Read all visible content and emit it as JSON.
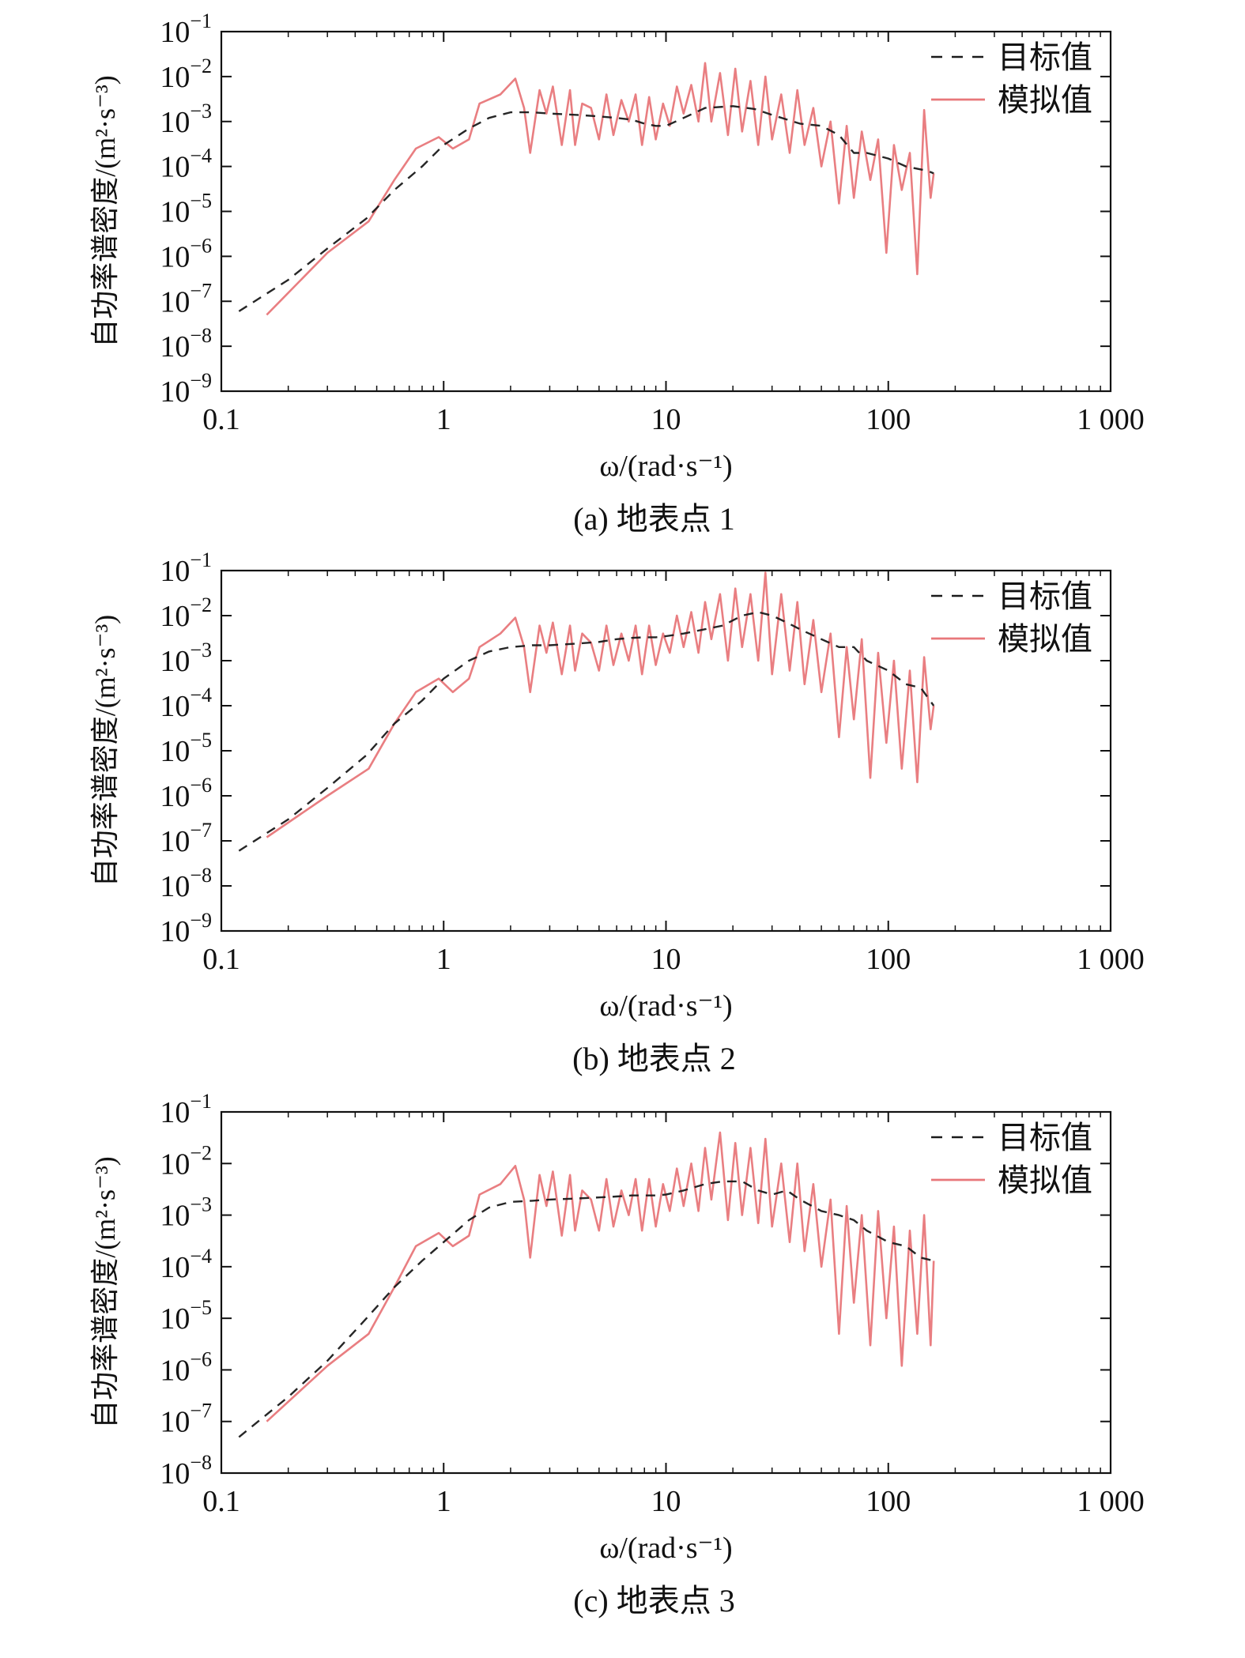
{
  "chart_data": [
    {
      "type": "line",
      "caption": "(a) 地表点 1",
      "xlabel": "ω/(rad·s⁻¹)",
      "ylabel": "自功率谱密度/(m²·s⁻³)",
      "xscale": "log",
      "yscale": "log",
      "xlim": [
        0.1,
        1000
      ],
      "ylim": [
        1e-09,
        0.1
      ],
      "xticks": [
        "0.1",
        "1",
        "10",
        "100",
        "1 000"
      ],
      "yticks": [
        {
          "base": "10",
          "exp": "−1"
        },
        {
          "base": "10",
          "exp": "−2"
        },
        {
          "base": "10",
          "exp": "−3"
        },
        {
          "base": "10",
          "exp": "−4"
        },
        {
          "base": "10",
          "exp": "−5"
        },
        {
          "base": "10",
          "exp": "−6"
        },
        {
          "base": "10",
          "exp": "−7"
        },
        {
          "base": "10",
          "exp": "−8"
        },
        {
          "base": "10",
          "exp": "−9"
        }
      ],
      "legend": {
        "position": "top-right",
        "entries": [
          "目标值",
          "模拟值"
        ]
      },
      "colors": {
        "target": "#1a1a1a",
        "simulated": "#e8777a"
      },
      "series": [
        {
          "name": "目标值",
          "style": "dashed",
          "x": [
            0.12,
            0.2,
            0.3,
            0.45,
            0.6,
            0.8,
            1.0,
            1.3,
            1.6,
            2.0,
            2.5,
            3.0,
            4.0,
            5.0,
            6.0,
            7.0,
            8.0,
            9.0,
            10.0,
            12.0,
            15.0,
            20.0,
            25.0,
            30.0,
            40.0,
            50.0,
            60.0,
            70.0,
            80.0,
            100.0,
            120.0,
            150.0,
            160.0
          ],
          "y": [
            6e-08,
            3e-07,
            1.5e-06,
            7e-06,
            3e-05,
            0.0001,
            0.0003,
            0.0007,
            0.0012,
            0.0016,
            0.0016,
            0.0015,
            0.0014,
            0.0013,
            0.0012,
            0.0011,
            0.0009,
            0.0008,
            0.0008,
            0.0012,
            0.002,
            0.0022,
            0.0019,
            0.0014,
            0.0009,
            0.0008,
            0.0005,
            0.0002,
            0.0002,
            0.00015,
            0.0001,
            8e-05,
            7e-05
          ]
        },
        {
          "name": "模拟值",
          "style": "solid",
          "x": [
            0.16,
            0.3,
            0.46,
            0.6,
            0.75,
            0.95,
            1.1,
            1.3,
            1.45,
            1.8,
            2.1,
            2.3,
            2.45,
            2.7,
            2.9,
            3.1,
            3.4,
            3.7,
            3.9,
            4.2,
            4.6,
            5.0,
            5.4,
            5.8,
            6.3,
            6.8,
            7.3,
            7.8,
            8.4,
            9.0,
            9.7,
            10.4,
            11.2,
            12.0,
            13.0,
            14.0,
            15.0,
            16.0,
            17.5,
            19.0,
            20.5,
            22.0,
            24.0,
            26.0,
            28.0,
            30.0,
            33.0,
            36.0,
            39.0,
            42.0,
            46.0,
            50.0,
            55.0,
            60.0,
            65.0,
            70.0,
            76.0,
            83.0,
            90.0,
            98.0,
            106.0,
            115.0,
            125.0,
            135.0,
            145.0,
            155.0,
            160.0
          ],
          "y": [
            5e-08,
            1.2e-06,
            6e-06,
            5e-05,
            0.00025,
            0.00045,
            0.00025,
            0.0004,
            0.0025,
            0.004,
            0.009,
            0.002,
            0.0002,
            0.005,
            0.0015,
            0.006,
            0.0003,
            0.005,
            0.0003,
            0.0025,
            0.002,
            0.0004,
            0.004,
            0.0005,
            0.003,
            0.001,
            0.004,
            0.0003,
            0.0035,
            0.0004,
            0.0025,
            0.0008,
            0.006,
            0.0015,
            0.0065,
            0.001,
            0.02,
            0.001,
            0.012,
            0.0005,
            0.015,
            0.0006,
            0.008,
            0.0003,
            0.01,
            0.0004,
            0.004,
            0.0002,
            0.005,
            0.0003,
            0.002,
            0.0001,
            0.001,
            1.5e-05,
            0.0008,
            2e-05,
            0.0006,
            5e-05,
            0.0004,
            1.2e-06,
            0.0003,
            3e-05,
            0.0002,
            4e-07,
            0.0018,
            2e-05,
            7e-05
          ]
        }
      ]
    },
    {
      "type": "line",
      "caption": "(b) 地表点 2",
      "xlabel": "ω/(rad·s⁻¹)",
      "ylabel": "自功率谱密度/(m²·s⁻³)",
      "xscale": "log",
      "yscale": "log",
      "xlim": [
        0.1,
        1000
      ],
      "ylim": [
        1e-09,
        0.1
      ],
      "xticks": [
        "0.1",
        "1",
        "10",
        "100",
        "1 000"
      ],
      "yticks": [
        {
          "base": "10",
          "exp": "−1"
        },
        {
          "base": "10",
          "exp": "−2"
        },
        {
          "base": "10",
          "exp": "−3"
        },
        {
          "base": "10",
          "exp": "−4"
        },
        {
          "base": "10",
          "exp": "−5"
        },
        {
          "base": "10",
          "exp": "−6"
        },
        {
          "base": "10",
          "exp": "−7"
        },
        {
          "base": "10",
          "exp": "−8"
        },
        {
          "base": "10",
          "exp": "−9"
        }
      ],
      "legend": {
        "position": "top-right",
        "entries": [
          "目标值",
          "模拟值"
        ]
      },
      "colors": {
        "target": "#1a1a1a",
        "simulated": "#e8777a"
      },
      "series": [
        {
          "name": "目标值",
          "style": "dashed",
          "x": [
            0.12,
            0.2,
            0.3,
            0.45,
            0.6,
            0.8,
            1.0,
            1.3,
            1.6,
            2.0,
            2.5,
            3.0,
            4.0,
            5.0,
            6.0,
            7.0,
            8.0,
            9.0,
            10.0,
            12.0,
            15.0,
            18.0,
            22.0,
            26.0,
            30.0,
            35.0,
            40.0,
            50.0,
            60.0,
            70.0,
            80.0,
            100.0,
            120.0,
            140.0,
            160.0
          ],
          "y": [
            6e-08,
            3e-07,
            1.5e-06,
            8e-06,
            4e-05,
            0.00013,
            0.0004,
            0.001,
            0.0016,
            0.002,
            0.0022,
            0.0022,
            0.0024,
            0.0026,
            0.003,
            0.0032,
            0.0033,
            0.0033,
            0.0035,
            0.004,
            0.005,
            0.006,
            0.01,
            0.012,
            0.01,
            0.007,
            0.005,
            0.003,
            0.002,
            0.002,
            0.001,
            0.0006,
            0.0003,
            0.00025,
            0.0001
          ]
        },
        {
          "name": "模拟值",
          "style": "solid",
          "x": [
            0.16,
            0.3,
            0.46,
            0.6,
            0.75,
            0.95,
            1.1,
            1.3,
            1.45,
            1.8,
            2.1,
            2.3,
            2.45,
            2.7,
            2.9,
            3.1,
            3.4,
            3.7,
            3.9,
            4.2,
            4.6,
            5.0,
            5.4,
            5.8,
            6.3,
            6.8,
            7.3,
            7.8,
            8.4,
            9.0,
            9.7,
            10.4,
            11.2,
            12.0,
            13.0,
            14.0,
            15.0,
            16.0,
            17.5,
            19.0,
            20.5,
            22.0,
            24.0,
            26.0,
            28.0,
            30.0,
            33.0,
            36.0,
            39.0,
            42.0,
            46.0,
            50.0,
            55.0,
            60.0,
            65.0,
            70.0,
            76.0,
            83.0,
            90.0,
            98.0,
            106.0,
            115.0,
            125.0,
            135.0,
            145.0,
            155.0,
            160.0
          ],
          "y": [
            1.2e-07,
            1e-06,
            4e-06,
            4e-05,
            0.0002,
            0.0004,
            0.0002,
            0.0004,
            0.002,
            0.004,
            0.009,
            0.002,
            0.0002,
            0.006,
            0.0015,
            0.007,
            0.0005,
            0.006,
            0.0006,
            0.004,
            0.0025,
            0.0006,
            0.006,
            0.0008,
            0.004,
            0.001,
            0.006,
            0.0005,
            0.006,
            0.0008,
            0.004,
            0.0015,
            0.01,
            0.002,
            0.012,
            0.0015,
            0.02,
            0.003,
            0.03,
            0.001,
            0.04,
            0.002,
            0.03,
            0.001,
            0.09,
            0.0005,
            0.03,
            0.0006,
            0.02,
            0.0003,
            0.008,
            0.0002,
            0.004,
            2e-05,
            0.002,
            5e-05,
            0.003,
            2.5e-06,
            0.0015,
            1.5e-05,
            0.001,
            4e-06,
            0.0006,
            2e-06,
            0.0012,
            3e-05,
            0.0001
          ]
        }
      ]
    },
    {
      "type": "line",
      "caption": "(c) 地表点 3",
      "xlabel": "ω/(rad·s⁻¹)",
      "ylabel": "自功率谱密度/(m²·s⁻³)",
      "xscale": "log",
      "yscale": "log",
      "xlim": [
        0.1,
        1000
      ],
      "ylim": [
        1e-08,
        0.1
      ],
      "xticks": [
        "0.1",
        "1",
        "10",
        "100",
        "1 000"
      ],
      "yticks": [
        {
          "base": "10",
          "exp": "−1"
        },
        {
          "base": "10",
          "exp": "−2"
        },
        {
          "base": "10",
          "exp": "−3"
        },
        {
          "base": "10",
          "exp": "−4"
        },
        {
          "base": "10",
          "exp": "−5"
        },
        {
          "base": "10",
          "exp": "−6"
        },
        {
          "base": "10",
          "exp": "−7"
        },
        {
          "base": "10",
          "exp": "−8"
        }
      ],
      "legend": {
        "position": "top-right",
        "entries": [
          "目标值",
          "模拟值"
        ]
      },
      "colors": {
        "target": "#1a1a1a",
        "simulated": "#e8777a"
      },
      "series": [
        {
          "name": "目标值",
          "style": "dashed",
          "x": [
            0.12,
            0.2,
            0.3,
            0.45,
            0.6,
            0.8,
            1.0,
            1.3,
            1.6,
            2.0,
            2.5,
            3.0,
            4.0,
            5.0,
            6.0,
            7.0,
            8.0,
            9.0,
            10.0,
            12.0,
            15.0,
            18.0,
            22.0,
            26.0,
            30.0,
            35.0,
            40.0,
            50.0,
            60.0,
            70.0,
            80.0,
            100.0,
            120.0,
            140.0,
            160.0
          ],
          "y": [
            5e-08,
            3e-07,
            1.5e-06,
            1e-05,
            4e-05,
            0.00013,
            0.0003,
            0.0008,
            0.0014,
            0.0018,
            0.0019,
            0.002,
            0.0021,
            0.0022,
            0.0023,
            0.0024,
            0.0024,
            0.0024,
            0.0025,
            0.003,
            0.004,
            0.0045,
            0.0045,
            0.003,
            0.0025,
            0.003,
            0.002,
            0.0012,
            0.001,
            0.0008,
            0.0005,
            0.0003,
            0.00025,
            0.00015,
            0.00013
          ]
        },
        {
          "name": "模拟值",
          "style": "solid",
          "x": [
            0.16,
            0.3,
            0.46,
            0.6,
            0.75,
            0.95,
            1.1,
            1.3,
            1.45,
            1.8,
            2.1,
            2.3,
            2.45,
            2.7,
            2.9,
            3.1,
            3.4,
            3.7,
            3.9,
            4.2,
            4.6,
            5.0,
            5.4,
            5.8,
            6.3,
            6.8,
            7.3,
            7.8,
            8.4,
            9.0,
            9.7,
            10.4,
            11.2,
            12.0,
            13.0,
            14.0,
            15.0,
            16.0,
            17.5,
            19.0,
            20.5,
            22.0,
            24.0,
            26.0,
            28.0,
            30.0,
            33.0,
            36.0,
            39.0,
            42.0,
            46.0,
            50.0,
            55.0,
            60.0,
            65.0,
            70.0,
            76.0,
            83.0,
            90.0,
            98.0,
            106.0,
            115.0,
            125.0,
            135.0,
            145.0,
            155.0,
            160.0
          ],
          "y": [
            1e-07,
            1.2e-06,
            5e-06,
            4e-05,
            0.00025,
            0.00045,
            0.00025,
            0.0004,
            0.0025,
            0.004,
            0.009,
            0.002,
            0.00015,
            0.006,
            0.0015,
            0.007,
            0.0004,
            0.006,
            0.0005,
            0.003,
            0.002,
            0.0005,
            0.005,
            0.0006,
            0.003,
            0.001,
            0.005,
            0.0005,
            0.005,
            0.0006,
            0.004,
            0.0012,
            0.008,
            0.0015,
            0.01,
            0.0012,
            0.02,
            0.002,
            0.04,
            0.0008,
            0.025,
            0.001,
            0.02,
            0.0007,
            0.03,
            0.0006,
            0.01,
            0.0003,
            0.01,
            0.0002,
            0.004,
            0.0001,
            0.002,
            5e-06,
            0.0015,
            2e-05,
            0.001,
            3e-06,
            0.0012,
            1e-05,
            0.0006,
            1.2e-06,
            0.0005,
            5e-06,
            0.001,
            3e-06,
            0.00013
          ]
        }
      ]
    }
  ]
}
